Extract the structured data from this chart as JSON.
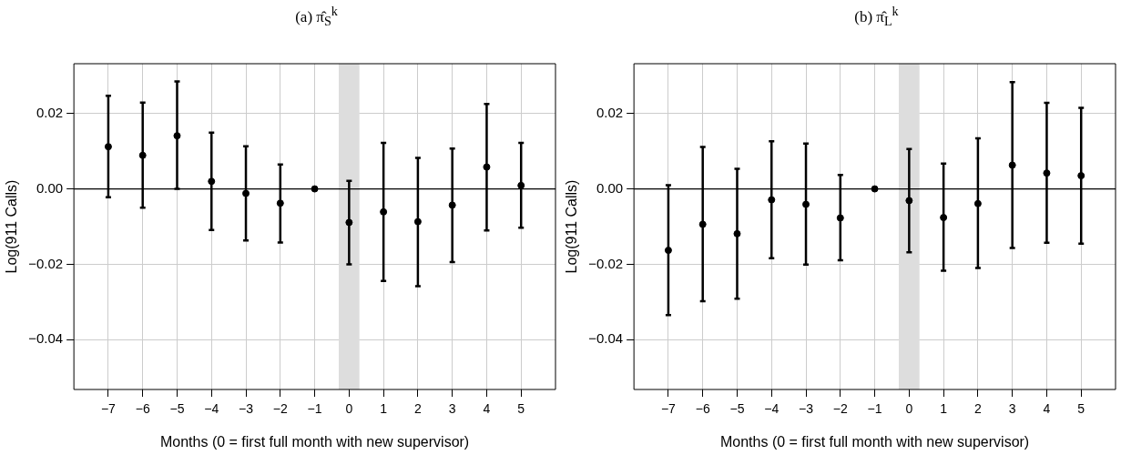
{
  "chart_data": [
    {
      "type": "scatter",
      "title": "(a) π̂$_{S}$$^{k}$",
      "xlabel": "Months (0 = first full month with new supervisor)",
      "ylabel": "Log(911 Calls)",
      "x": [
        -7,
        -6,
        -5,
        -4,
        -3,
        -2,
        -1,
        0,
        1,
        2,
        3,
        4,
        5
      ],
      "values": [
        0.0112,
        0.0089,
        0.0141,
        0.002,
        -0.0012,
        -0.0038,
        0,
        -0.0089,
        -0.0061,
        -0.0087,
        -0.0043,
        0.0058,
        0.0009
      ],
      "errors": [
        [
          -0.0022,
          0.0247
        ],
        [
          -0.005,
          0.0229
        ],
        [
          0.0,
          0.0285
        ],
        [
          -0.0109,
          0.0149
        ],
        [
          -0.0137,
          0.0113
        ],
        [
          -0.0142,
          0.0065
        ],
        null,
        [
          -0.02,
          0.0021
        ],
        [
          -0.0244,
          0.0122
        ],
        [
          -0.0258,
          0.0082
        ],
        [
          -0.0194,
          0.0107
        ],
        [
          -0.011,
          0.0225
        ],
        [
          -0.0103,
          0.0122
        ]
      ],
      "color": "#000000",
      "marker": "circle",
      "grid": true,
      "xlim": [
        -8,
        6
      ],
      "xticks": [
        -7,
        -6,
        -5,
        -4,
        -3,
        -2,
        -1,
        0,
        1,
        2,
        3,
        4,
        5
      ],
      "ylim": [
        -0.0532,
        0.0332
      ],
      "yticks": [
        {
          "value": -0.04,
          "label": "−0.04"
        },
        {
          "value": -0.02,
          "label": "−0.02"
        },
        {
          "value": 0,
          "label": "0.00"
        },
        {
          "value": 0.02,
          "label": "0.02"
        }
      ],
      "ref_lines": [
        {
          "axis": "y",
          "value": 0,
          "color": "#000000"
        }
      ],
      "bands": [
        {
          "axis": "x",
          "from": -0.3,
          "to": 0.3,
          "color": "#dddddd"
        }
      ]
    },
    {
      "type": "scatter",
      "title": "(b) π̂$_{L}$$^{k}$",
      "xlabel": "Months (0 = first full month with new supervisor)",
      "ylabel": "Log(911 Calls)",
      "x": [
        -7,
        -6,
        -5,
        -4,
        -3,
        -2,
        -1,
        0,
        1,
        2,
        3,
        4,
        5
      ],
      "values": [
        -0.0163,
        -0.0094,
        -0.0119,
        -0.0029,
        -0.0041,
        -0.0077,
        0,
        -0.0031,
        -0.0076,
        -0.0039,
        0.0063,
        0.0042,
        0.0035
      ],
      "errors": [
        [
          -0.0335,
          0.001
        ],
        [
          -0.0298,
          0.0111
        ],
        [
          -0.0291,
          0.0053
        ],
        [
          -0.0184,
          0.0126
        ],
        [
          -0.0201,
          0.012
        ],
        [
          -0.0189,
          0.0037
        ],
        null,
        [
          -0.0168,
          0.0106
        ],
        [
          -0.0217,
          0.0067
        ],
        [
          -0.021,
          0.0134
        ],
        [
          -0.0157,
          0.0283
        ],
        [
          -0.0143,
          0.0228
        ],
        [
          -0.0145,
          0.0215
        ]
      ],
      "color": "#000000",
      "marker": "circle",
      "grid": true,
      "xlim": [
        -8,
        6
      ],
      "xticks": [
        -7,
        -6,
        -5,
        -4,
        -3,
        -2,
        -1,
        0,
        1,
        2,
        3,
        4,
        5
      ],
      "ylim": [
        -0.0532,
        0.0332
      ],
      "yticks": [
        {
          "value": -0.04,
          "label": "−0.04"
        },
        {
          "value": -0.02,
          "label": "−0.02"
        },
        {
          "value": 0,
          "label": "0.00"
        },
        {
          "value": 0.02,
          "label": "0.02"
        }
      ],
      "ref_lines": [
        {
          "axis": "y",
          "value": 0,
          "color": "#000000"
        }
      ],
      "bands": [
        {
          "axis": "x",
          "from": -0.3,
          "to": 0.3,
          "color": "#dddddd"
        }
      ]
    }
  ]
}
